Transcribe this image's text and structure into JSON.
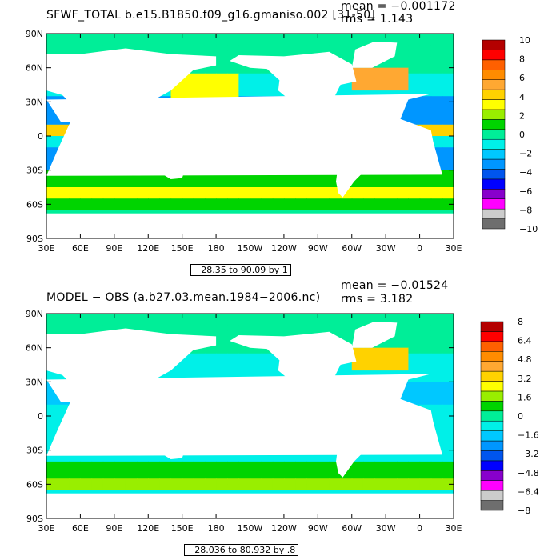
{
  "palette": [
    "#6e6e6e",
    "#cccccc",
    "#ff00ff",
    "#8800cc",
    "#0000ff",
    "#0055ee",
    "#0096ff",
    "#00c8ff",
    "#00f0e8",
    "#00ee98",
    "#00d400",
    "#99ee00",
    "#ffff00",
    "#ffd200",
    "#ffa832",
    "#ff8c00",
    "#ff6000",
    "#ff0000",
    "#b40000"
  ],
  "land_color": "#ffffff",
  "chart_data": [
    {
      "type": "heatmap",
      "title": "SFWF_TOTAL b.e15.B1850.f09_g16.gmaniso.002 [31-50]",
      "stats": {
        "mean": "mean = −0.001172",
        "rms": "rms = 1.143"
      },
      "contour_info": "−28.35 to 90.09 by 1",
      "lat_ticks": [
        "90N",
        "60N",
        "30N",
        "0",
        "30S",
        "60S",
        "90S"
      ],
      "lon_ticks": [
        "30E",
        "60E",
        "90E",
        "120E",
        "150E",
        "180",
        "150W",
        "120W",
        "90W",
        "60W",
        "30W",
        "0",
        "30E"
      ],
      "colorbar": {
        "min": -10,
        "max": 10,
        "labels": [
          "10",
          "8",
          "6",
          "4",
          "2",
          "0",
          "−2",
          "−4",
          "−6",
          "−8",
          "−10"
        ]
      }
    },
    {
      "type": "heatmap",
      "title": "MODEL − OBS (a.b27.03.mean.1984−2006.nc)",
      "stats": {
        "mean": "mean = −0.01524",
        "rms": "rms = 3.182"
      },
      "contour_info": "−28.036 to 80.932 by .8",
      "lat_ticks": [
        "90N",
        "60N",
        "30N",
        "0",
        "30S",
        "60S",
        "90S"
      ],
      "lon_ticks": [
        "30E",
        "60E",
        "90E",
        "120E",
        "150E",
        "180",
        "150W",
        "120W",
        "90W",
        "60W",
        "30W",
        "0",
        "30E"
      ],
      "colorbar": {
        "min": -8,
        "max": 8,
        "labels": [
          "8",
          "6.4",
          "4.8",
          "3.2",
          "1.6",
          "0",
          "−1.6",
          "−3.2",
          "−4.8",
          "−6.4",
          "−8"
        ]
      }
    }
  ]
}
